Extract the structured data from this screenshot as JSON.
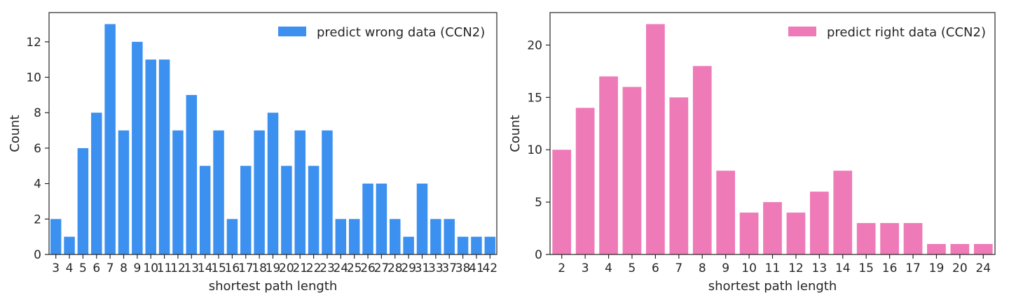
{
  "chart_data": [
    {
      "type": "bar",
      "color": "#3b90f0",
      "xlabel": "shortest path length",
      "ylabel": "Count",
      "ylim": [
        0,
        13.65
      ],
      "yticks": [
        0,
        2,
        4,
        6,
        8,
        10,
        12
      ],
      "legend": {
        "label": "predict wrong data (CCN2)",
        "position": "top-right"
      },
      "categories": [
        "3",
        "4",
        "5",
        "6",
        "7",
        "8",
        "9",
        "10",
        "11",
        "12",
        "13",
        "14",
        "15",
        "16",
        "17",
        "18",
        "19",
        "20",
        "21",
        "22",
        "23",
        "24",
        "25",
        "26",
        "27",
        "28",
        "29",
        "31",
        "33",
        "37",
        "38",
        "41",
        "42"
      ],
      "values": [
        2,
        1,
        6,
        8,
        13,
        7,
        12,
        11,
        11,
        7,
        9,
        5,
        7,
        2,
        5,
        7,
        8,
        5,
        7,
        5,
        7,
        2,
        2,
        4,
        4,
        2,
        1,
        4,
        2,
        2,
        1,
        1,
        1
      ]
    },
    {
      "type": "bar",
      "color": "#ef7ab8",
      "xlabel": "shortest path length",
      "ylabel": "Count",
      "ylim": [
        0,
        23.1
      ],
      "yticks": [
        0,
        5,
        10,
        15,
        20
      ],
      "legend": {
        "label": "predict right data (CCN2)",
        "position": "top-right"
      },
      "categories": [
        "2",
        "3",
        "4",
        "5",
        "6",
        "7",
        "8",
        "9",
        "10",
        "11",
        "12",
        "13",
        "14",
        "15",
        "16",
        "17",
        "19",
        "20",
        "24"
      ],
      "values": [
        10,
        14,
        17,
        16,
        22,
        15,
        18,
        8,
        4,
        5,
        4,
        6,
        8,
        3,
        3,
        3,
        1,
        1,
        1
      ]
    }
  ]
}
